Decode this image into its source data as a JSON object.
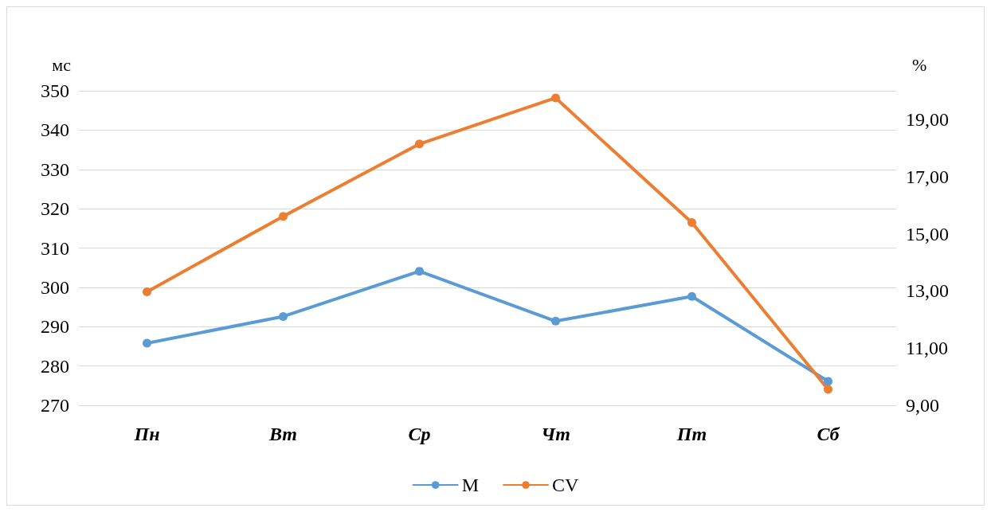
{
  "chart_data": {
    "type": "line",
    "ylabel": "мс",
    "y2label": "%",
    "categories": [
      "Пн",
      "Вт",
      "Ср",
      "Чт",
      "Пт",
      "Сб"
    ],
    "series": [
      {
        "name": "M",
        "color": "#5b9bd5",
        "values": [
          285.8,
          292.6,
          304.1,
          291.4,
          297.7,
          276.1
        ]
      },
      {
        "name": "CV",
        "color": "#ed7d31",
        "axis": "y2",
        "values": [
          12.97,
          15.61,
          18.14,
          19.75,
          15.39,
          9.56
        ]
      }
    ],
    "ylim": [
      270,
      350
    ],
    "yticks": [
      270,
      280,
      290,
      300,
      310,
      320,
      330,
      340,
      350
    ],
    "y2lim": [
      9,
      20
    ],
    "y2ticks": [
      {
        "value": 9,
        "label": "9,00"
      },
      {
        "value": 11,
        "label": "11,00"
      },
      {
        "value": 13,
        "label": "13,00"
      },
      {
        "value": 15,
        "label": "15,00"
      },
      {
        "value": 17,
        "label": "17,00"
      },
      {
        "value": 19,
        "label": "19,00"
      }
    ],
    "grid": "y",
    "legend": "bottom",
    "marker": "circle",
    "line_style": "solid"
  }
}
